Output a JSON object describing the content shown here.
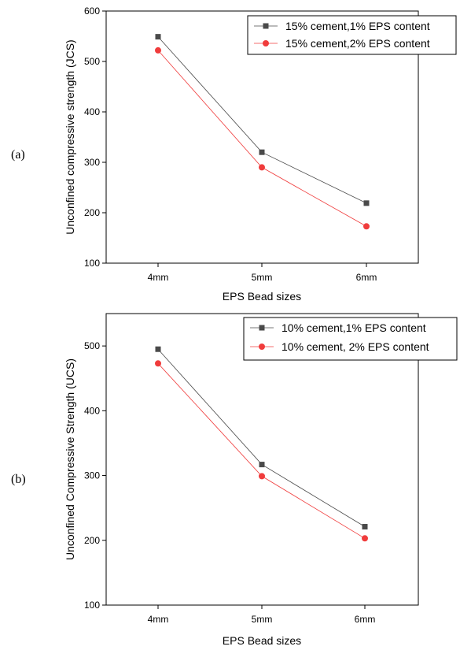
{
  "chart_data": [
    {
      "type": "line",
      "panel_label": "(a)",
      "categories": [
        "4mm",
        "5mm",
        "6mm"
      ],
      "xlabel": "EPS Bead sizes",
      "ylabel": "Unconfined compressive strength (JCS)",
      "ylim": [
        100,
        600
      ],
      "yticks": [
        "100",
        "200",
        "300",
        "400",
        "500",
        "600"
      ],
      "grid": false,
      "legend_position": "top-right",
      "series": [
        {
          "name": "15% cement,1% EPS content",
          "marker": "square",
          "color": "#4a4a4a",
          "values": [
            549,
            320,
            219
          ]
        },
        {
          "name": "15% cement,2% EPS content",
          "marker": "circle",
          "color": "#f03c3c",
          "values": [
            522,
            290,
            173
          ]
        }
      ]
    },
    {
      "type": "line",
      "panel_label": "(b)",
      "categories": [
        "4mm",
        "5mm",
        "6mm"
      ],
      "xlabel": "EPS Bead sizes",
      "ylabel": "Unconfined Compressive Strength (UCS)",
      "ylim": [
        100,
        550
      ],
      "yticks": [
        "100",
        "200",
        "300",
        "400",
        "500"
      ],
      "grid": false,
      "legend_position": "top-right",
      "series": [
        {
          "name": "10% cement,1% EPS content",
          "marker": "square",
          "color": "#4a4a4a",
          "values": [
            495,
            317,
            221
          ]
        },
        {
          "name": "10% cement, 2% EPS content",
          "marker": "circle",
          "color": "#f03c3c",
          "values": [
            473,
            299,
            203
          ]
        }
      ]
    }
  ]
}
